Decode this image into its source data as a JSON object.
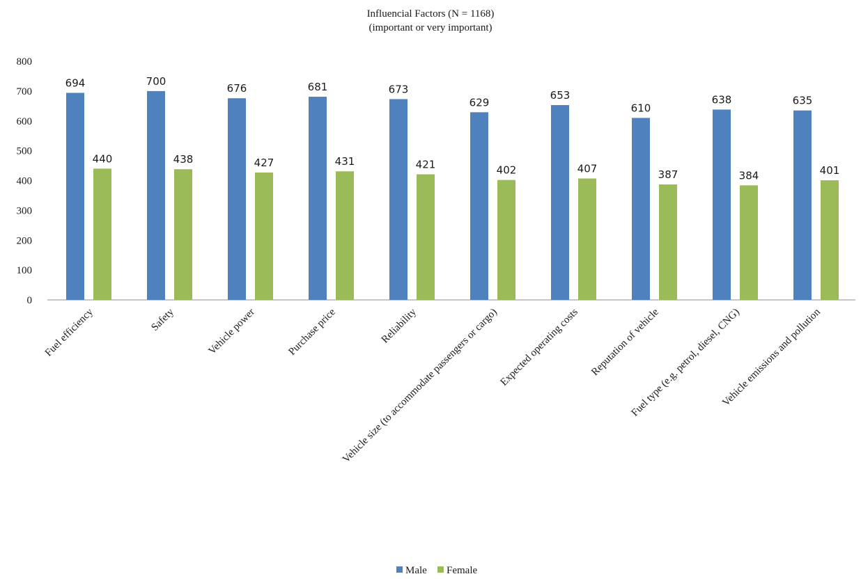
{
  "chart_data": {
    "type": "bar",
    "title": "Influencial Factors (N = 1168)",
    "subtitle": "(important or very important)",
    "categories": [
      "Fuel efficiency",
      "Safety",
      "Vehicle power",
      "Purchase price",
      "Reliability",
      "Vehicle size (to accommodate passengers or cargo)",
      "Expected operating costs",
      "Reputation of vehicle",
      "Fuel type (e.g. petrol, diesel, CNG)",
      "Vehicle emissions and pollution"
    ],
    "series": [
      {
        "name": "Male",
        "color": "#4f81bd",
        "values": [
          694,
          700,
          676,
          681,
          673,
          629,
          653,
          610,
          638,
          635
        ]
      },
      {
        "name": "Female",
        "color": "#9bbb59",
        "values": [
          440,
          438,
          427,
          431,
          421,
          402,
          407,
          387,
          384,
          401
        ]
      }
    ],
    "yticks": [
      0,
      100,
      200,
      300,
      400,
      500,
      600,
      700,
      800
    ],
    "ylim": [
      0,
      800
    ],
    "grid": false,
    "data_labels": true,
    "legend_position": "bottom"
  }
}
